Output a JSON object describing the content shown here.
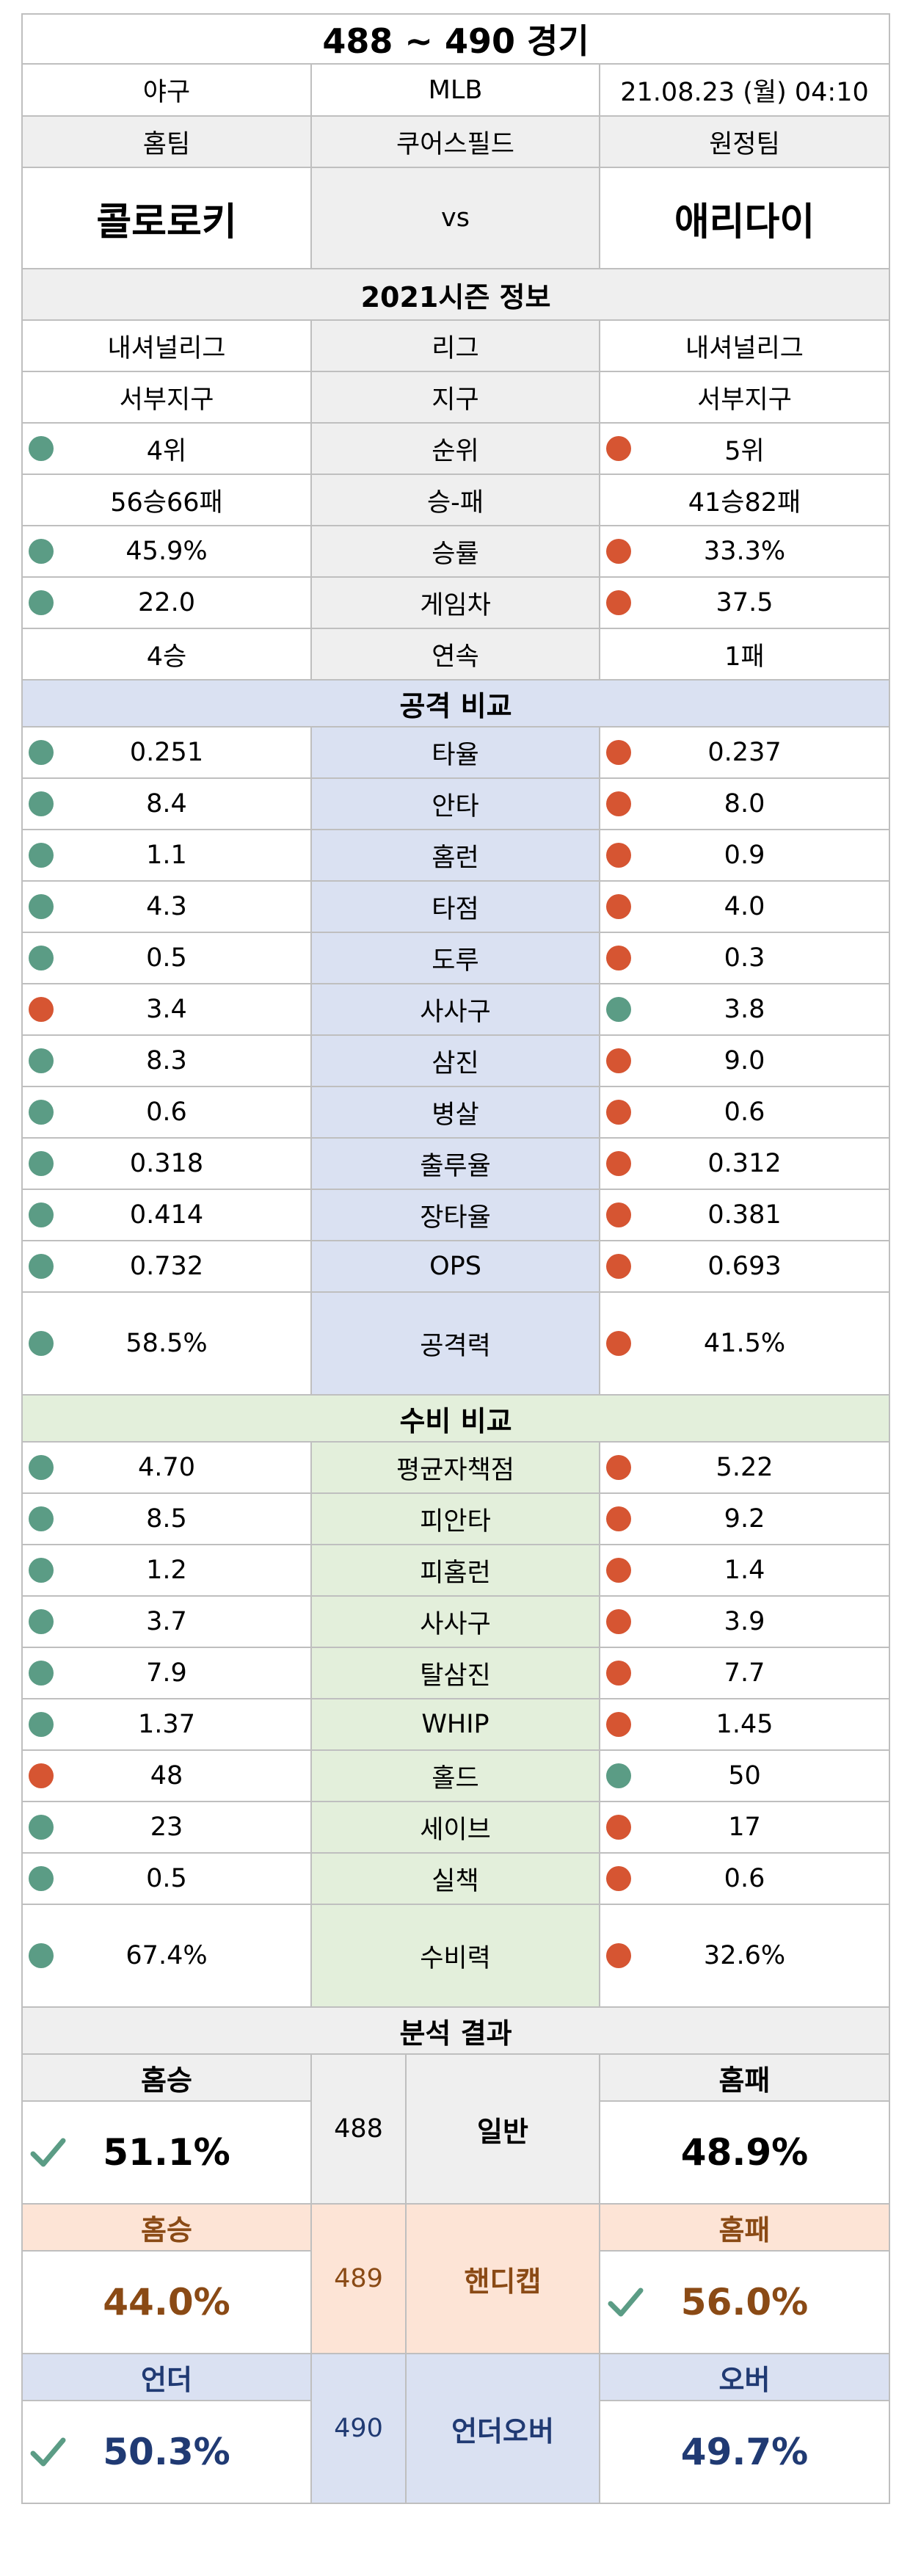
{
  "header": {
    "title": "488 ~ 490 경기",
    "sport": "야구",
    "league": "MLB",
    "datetime": "21.08.23 (월) 04:10",
    "home_label": "홈팀",
    "stadium": "쿠어스필드",
    "away_label": "원정팀",
    "home_team": "콜로로키",
    "vs": "vs",
    "away_team": "애리다이"
  },
  "season": {
    "title": "2021시즌 정보",
    "rows": [
      {
        "home": "내셔널리그",
        "label": "리그",
        "away": "내셔널리그",
        "hdot": "",
        "adot": ""
      },
      {
        "home": "서부지구",
        "label": "지구",
        "away": "서부지구",
        "hdot": "",
        "adot": ""
      },
      {
        "home": "4위",
        "label": "순위",
        "away": "5위",
        "hdot": "g",
        "adot": "r"
      },
      {
        "home": "56승66패",
        "label": "승-패",
        "away": "41승82패",
        "hdot": "",
        "adot": ""
      },
      {
        "home": "45.9%",
        "label": "승률",
        "away": "33.3%",
        "hdot": "g",
        "adot": "r"
      },
      {
        "home": "22.0",
        "label": "게임차",
        "away": "37.5",
        "hdot": "g",
        "adot": "r"
      },
      {
        "home": "4승",
        "label": "연속",
        "away": "1패",
        "hdot": "",
        "adot": ""
      }
    ]
  },
  "attack": {
    "title": "공격 비교",
    "rows": [
      {
        "home": "0.251",
        "label": "타율",
        "away": "0.237",
        "hdot": "g",
        "adot": "r"
      },
      {
        "home": "8.4",
        "label": "안타",
        "away": "8.0",
        "hdot": "g",
        "adot": "r"
      },
      {
        "home": "1.1",
        "label": "홈런",
        "away": "0.9",
        "hdot": "g",
        "adot": "r"
      },
      {
        "home": "4.3",
        "label": "타점",
        "away": "4.0",
        "hdot": "g",
        "adot": "r"
      },
      {
        "home": "0.5",
        "label": "도루",
        "away": "0.3",
        "hdot": "g",
        "adot": "r"
      },
      {
        "home": "3.4",
        "label": "사사구",
        "away": "3.8",
        "hdot": "r",
        "adot": "g"
      },
      {
        "home": "8.3",
        "label": "삼진",
        "away": "9.0",
        "hdot": "g",
        "adot": "r"
      },
      {
        "home": "0.6",
        "label": "병살",
        "away": "0.6",
        "hdot": "g",
        "adot": "r"
      },
      {
        "home": "0.318",
        "label": "출루율",
        "away": "0.312",
        "hdot": "g",
        "adot": "r"
      },
      {
        "home": "0.414",
        "label": "장타율",
        "away": "0.381",
        "hdot": "g",
        "adot": "r"
      },
      {
        "home": "0.732",
        "label": "OPS",
        "away": "0.693",
        "hdot": "g",
        "adot": "r"
      }
    ],
    "power": {
      "home": "58.5%",
      "label": "공격력",
      "away": "41.5%"
    }
  },
  "defense": {
    "title": "수비 비교",
    "rows": [
      {
        "home": "4.70",
        "label": "평균자책점",
        "away": "5.22",
        "hdot": "g",
        "adot": "r"
      },
      {
        "home": "8.5",
        "label": "피안타",
        "away": "9.2",
        "hdot": "g",
        "adot": "r"
      },
      {
        "home": "1.2",
        "label": "피홈런",
        "away": "1.4",
        "hdot": "g",
        "adot": "r"
      },
      {
        "home": "3.7",
        "label": "사사구",
        "away": "3.9",
        "hdot": "g",
        "adot": "r"
      },
      {
        "home": "7.9",
        "label": "탈삼진",
        "away": "7.7",
        "hdot": "g",
        "adot": "r"
      },
      {
        "home": "1.37",
        "label": "WHIP",
        "away": "1.45",
        "hdot": "g",
        "adot": "r"
      },
      {
        "home": "48",
        "label": "홀드",
        "away": "50",
        "hdot": "r",
        "adot": "g"
      },
      {
        "home": "23",
        "label": "세이브",
        "away": "17",
        "hdot": "g",
        "adot": "r"
      },
      {
        "home": "0.5",
        "label": "실책",
        "away": "0.6",
        "hdot": "g",
        "adot": "r"
      }
    ],
    "power": {
      "home": "67.4%",
      "label": "수비력",
      "away": "32.6%"
    }
  },
  "analysis": {
    "title": "분석 결과",
    "general": {
      "left_label": "홈승",
      "left_pct": "51.1%",
      "num": "488",
      "name": "일반",
      "right_label": "홈패",
      "right_pct": "48.9%"
    },
    "handicap": {
      "left_label": "홈승",
      "left_pct": "44.0%",
      "num": "489",
      "name": "핸디캡",
      "right_label": "홈패",
      "right_pct": "56.0%"
    },
    "underover": {
      "left_label": "언더",
      "left_pct": "50.3%",
      "num": "490",
      "name": "언더오버",
      "right_label": "오버",
      "right_pct": "49.7%"
    }
  },
  "colors": {
    "good": "#5b9c85",
    "bad": "#d65532",
    "check": "#5b9c85"
  }
}
